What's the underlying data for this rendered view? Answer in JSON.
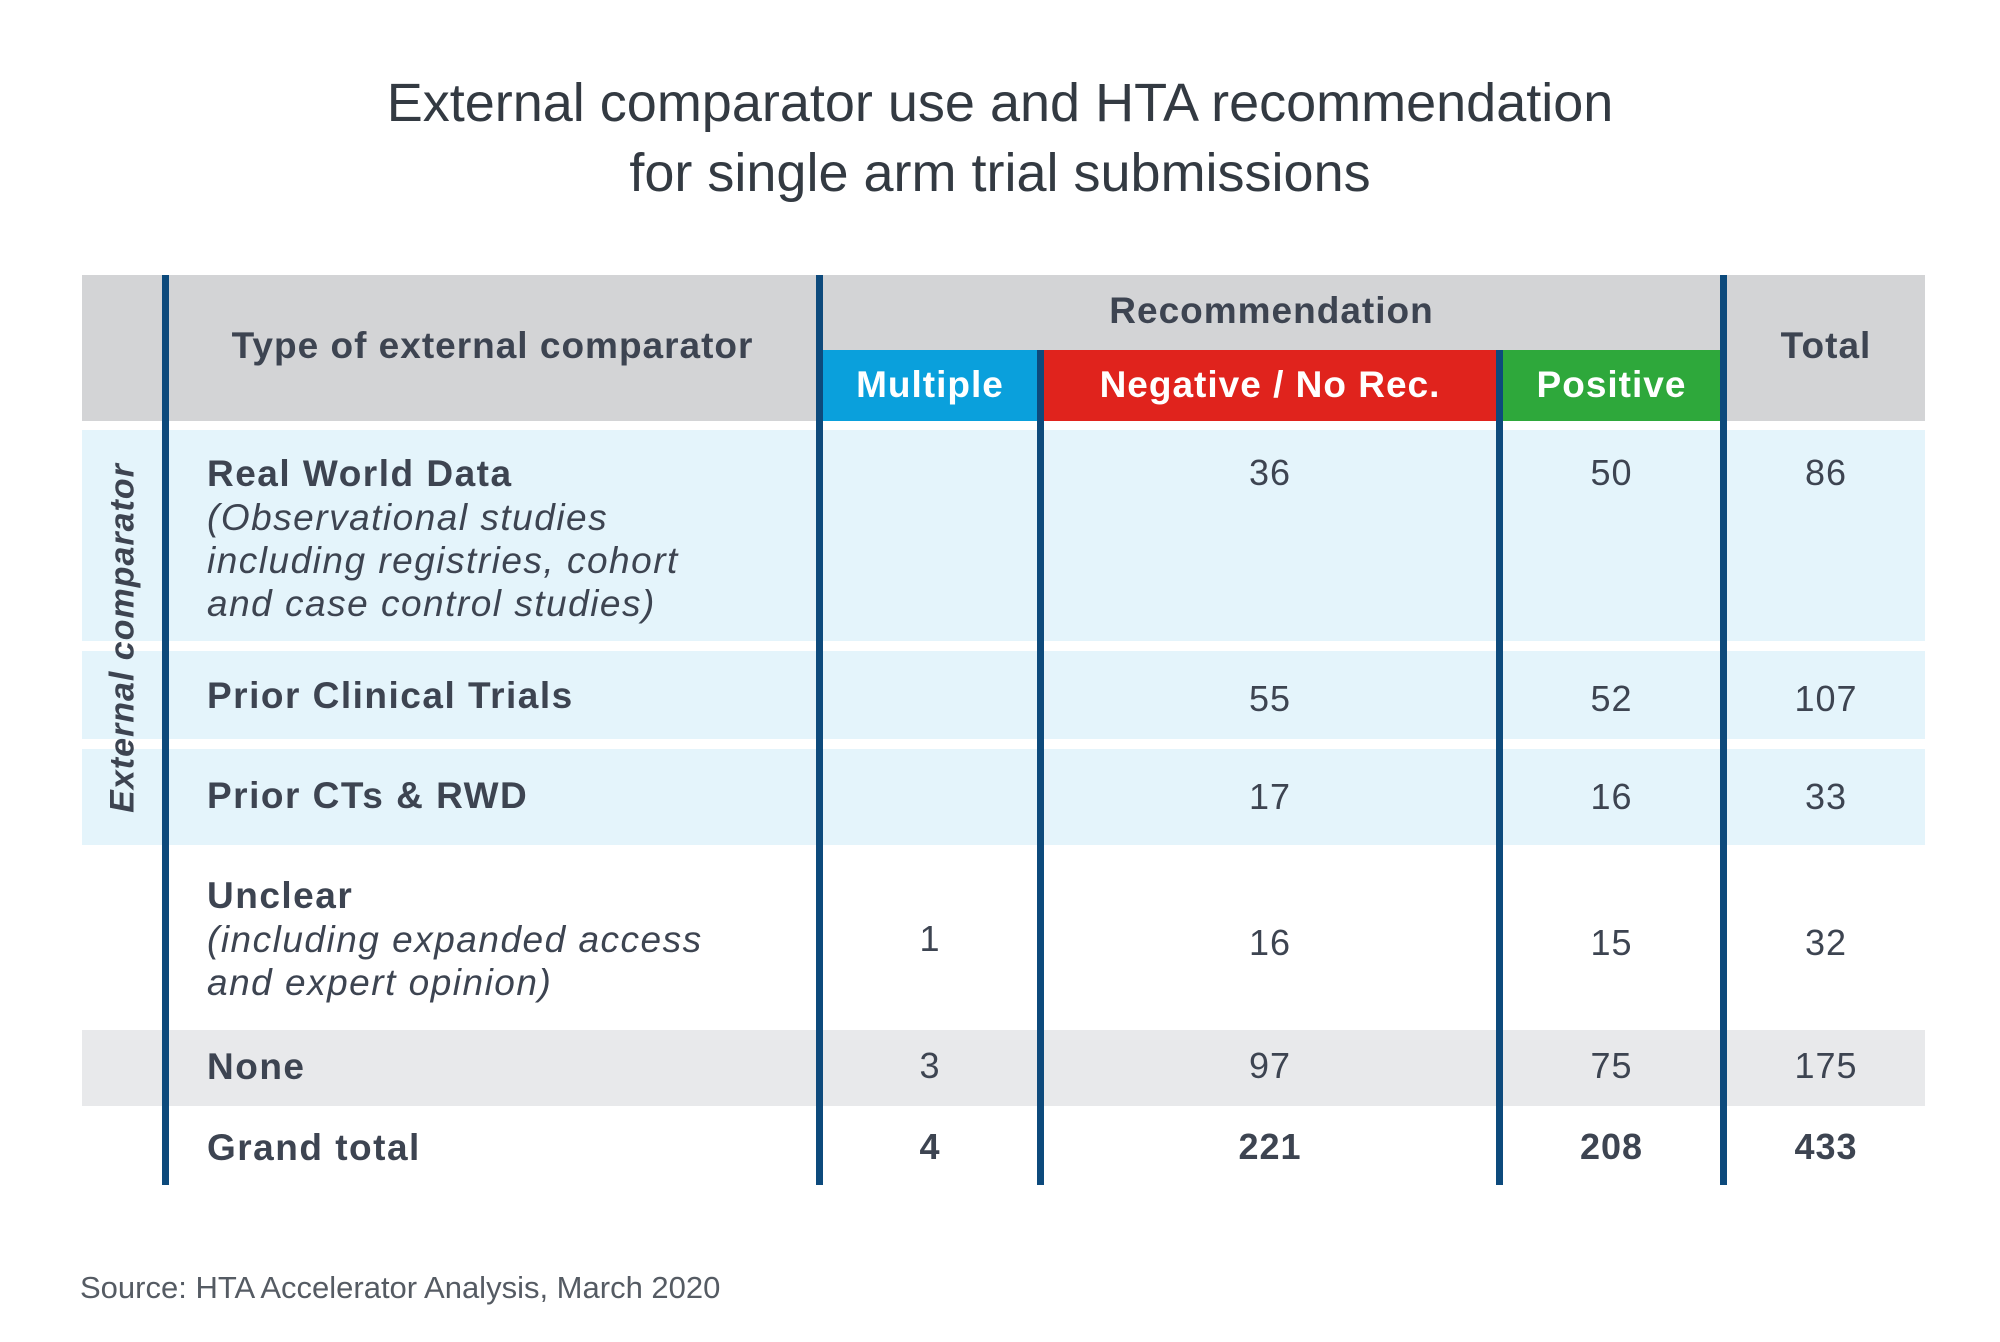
{
  "title_line1": "External comparator use and HTA recommendation",
  "title_line2": "for single arm trial submissions",
  "header": {
    "type_col": "Type of external comparator",
    "recommendation": "Recommendation",
    "multiple": "Multiple",
    "negative": "Negative / No Rec.",
    "positive": "Positive",
    "total": "Total"
  },
  "side_label": "External comparator",
  "rows": [
    {
      "main": "Real World Data",
      "sub1": "(Observational studies",
      "sub2": "including registries, cohort",
      "sub3": "and case control studies)",
      "multiple": "",
      "negative": "36",
      "positive": "50",
      "total": "86"
    },
    {
      "main": "Prior Clinical Trials",
      "multiple": "",
      "negative": "55",
      "positive": "52",
      "total": "107"
    },
    {
      "main": "Prior CTs & RWD",
      "multiple": "",
      "negative": "17",
      "positive": "16",
      "total": "33"
    },
    {
      "main": "Unclear",
      "sub1": "(including expanded access",
      "sub2": "and expert opinion)",
      "multiple": "1",
      "negative": "16",
      "positive": "15",
      "total": "32"
    },
    {
      "main": "None",
      "multiple": "3",
      "negative": "97",
      "positive": "75",
      "total": "175"
    },
    {
      "main": "Grand total",
      "multiple": "4",
      "negative": "221",
      "positive": "208",
      "total": "433"
    }
  ],
  "source": "Source: HTA Accelerator Analysis, March 2020",
  "colors": {
    "multiple": "#0aa0dc",
    "negative": "#e0231d",
    "positive": "#2ea83b",
    "divider": "#0d4a7c",
    "highlight_row": "#e4f4fb"
  }
}
